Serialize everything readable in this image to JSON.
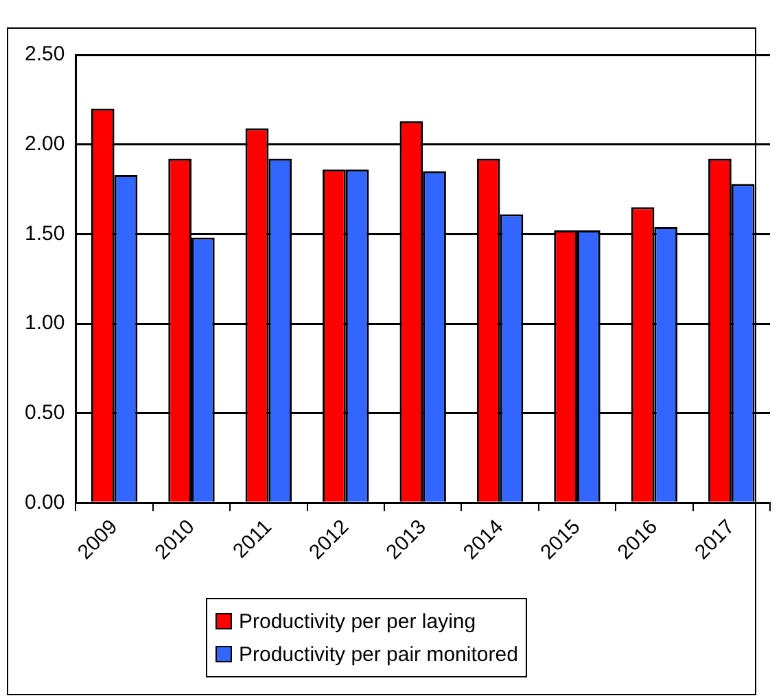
{
  "chart_data": {
    "type": "bar",
    "categories": [
      "2009",
      "2010",
      "2011",
      "2012",
      "2013",
      "2014",
      "2015",
      "2016",
      "2017"
    ],
    "series": [
      {
        "name": "Productivity per per laying",
        "color": "#ff0000",
        "values": [
          2.2,
          1.92,
          2.09,
          1.86,
          2.13,
          1.92,
          1.52,
          1.65,
          1.92
        ]
      },
      {
        "name": "Productivity per pair monitored",
        "color": "#3366ff",
        "values": [
          1.83,
          1.48,
          1.92,
          1.86,
          1.85,
          1.61,
          1.52,
          1.54,
          1.78
        ]
      }
    ],
    "ylim": [
      0,
      2.5
    ],
    "yticks": [
      {
        "value": 0,
        "label": "0.00"
      },
      {
        "value": 0.5,
        "label": "0.50"
      },
      {
        "value": 1,
        "label": "1.00"
      },
      {
        "value": 1.5,
        "label": "1.50"
      },
      {
        "value": 2,
        "label": "2.00"
      },
      {
        "value": 2.5,
        "label": "2.50"
      }
    ],
    "grid": "y",
    "legend": "bottom"
  }
}
